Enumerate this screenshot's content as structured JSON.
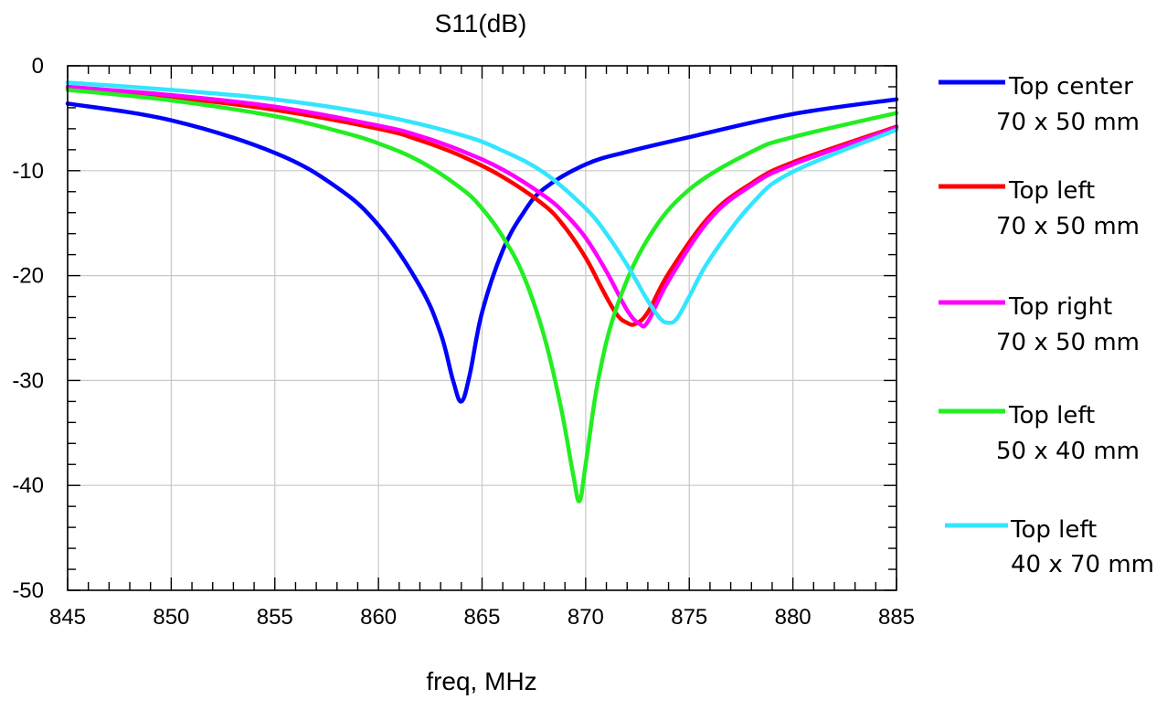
{
  "chart_data": {
    "type": "line",
    "title": "S11(dB)",
    "xlabel": "freq, MHz",
    "ylabel": "",
    "xlim": [
      845,
      885
    ],
    "ylim": [
      -50,
      0
    ],
    "xticks": [
      845,
      850,
      855,
      860,
      865,
      870,
      875,
      880,
      885
    ],
    "yticks": [
      0,
      -10,
      -20,
      -30,
      -40,
      -50
    ],
    "grid": true,
    "legend_position": "right",
    "series": [
      {
        "name": "Top center",
        "name_line2": "70 x 50 mm",
        "color": "#0000ff",
        "x": [
          845,
          850,
          855,
          858,
          860,
          862,
          863,
          863.6,
          864,
          864.4,
          865,
          866,
          867,
          868,
          870,
          872,
          875,
          880,
          885
        ],
        "y": [
          -3.6,
          -5.2,
          -8.3,
          -11.6,
          -15.2,
          -21.0,
          -25.5,
          -30.0,
          -32.0,
          -29.5,
          -23.5,
          -17.6,
          -14.0,
          -11.7,
          -9.4,
          -8.2,
          -6.8,
          -4.6,
          -3.2
        ]
      },
      {
        "name": "Top left",
        "name_line2": "70 x 50 mm",
        "color": "#ff0000",
        "x": [
          845,
          850,
          855,
          860,
          862,
          864,
          866,
          868,
          869,
          870,
          870.8,
          871.5,
          872,
          872.4,
          873,
          874,
          876,
          878,
          880,
          885
        ],
        "y": [
          -2.2,
          -3.0,
          -4.2,
          -6.0,
          -7.1,
          -8.6,
          -10.6,
          -13.3,
          -15.4,
          -18.3,
          -21.3,
          -23.7,
          -24.5,
          -24.6,
          -23.5,
          -19.8,
          -14.3,
          -11.2,
          -9.2,
          -5.8
        ]
      },
      {
        "name": "Top right",
        "name_line2": "70 x 50 mm",
        "color": "#ff00ff",
        "x": [
          845,
          850,
          855,
          860,
          862,
          864,
          866,
          868,
          869,
          870,
          871,
          872,
          872.6,
          873,
          874,
          876,
          878,
          880,
          885
        ],
        "y": [
          -2.0,
          -2.8,
          -3.9,
          -5.7,
          -6.7,
          -8.1,
          -9.9,
          -12.4,
          -14.1,
          -16.4,
          -19.6,
          -23.3,
          -24.6,
          -24.4,
          -20.5,
          -14.6,
          -11.4,
          -9.4,
          -5.9
        ]
      },
      {
        "name": "Top left",
        "name_line2": "50 x 40 mm",
        "color": "#22ee22",
        "x": [
          845,
          850,
          855,
          858,
          860,
          862,
          864,
          865,
          866,
          867,
          868,
          868.8,
          869.4,
          869.7,
          870,
          870.6,
          871.5,
          873,
          875,
          878,
          880,
          885
        ],
        "y": [
          -2.3,
          -3.3,
          -4.8,
          -6.2,
          -7.4,
          -9.1,
          -11.7,
          -13.6,
          -16.3,
          -20.0,
          -25.8,
          -32.5,
          -39.0,
          -41.5,
          -38.0,
          -30.0,
          -23.0,
          -16.5,
          -11.8,
          -8.2,
          -6.8,
          -4.5
        ]
      },
      {
        "name": "Top left",
        "name_line2": "40 x 70 mm",
        "color": "#33e5ff",
        "x": [
          845,
          850,
          855,
          860,
          864,
          866,
          868,
          870,
          871,
          872,
          873,
          873.6,
          874,
          874.4,
          875,
          876,
          878,
          880,
          885
        ],
        "y": [
          -1.6,
          -2.3,
          -3.2,
          -4.7,
          -6.6,
          -8.1,
          -10.2,
          -13.6,
          -16.0,
          -19.0,
          -22.4,
          -24.1,
          -24.5,
          -24.1,
          -22.0,
          -18.4,
          -13.2,
          -10.1,
          -6.1
        ]
      }
    ]
  }
}
